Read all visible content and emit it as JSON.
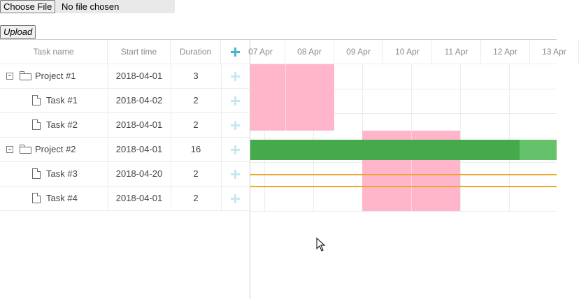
{
  "file_input": {
    "button_label": "Choose File",
    "status": "No file chosen"
  },
  "upload_button": {
    "label": "Upload"
  },
  "grid": {
    "columns": [
      "Task name",
      "Start time",
      "Duration"
    ],
    "rows": [
      {
        "name": "Project #1",
        "start": "2018-04-01",
        "duration": "3",
        "type": "project"
      },
      {
        "name": "Task #1",
        "start": "2018-04-02",
        "duration": "2",
        "type": "task"
      },
      {
        "name": "Task #2",
        "start": "2018-04-01",
        "duration": "2",
        "type": "task"
      },
      {
        "name": "Project #2",
        "start": "2018-04-01",
        "duration": "16",
        "type": "project"
      },
      {
        "name": "Task #3",
        "start": "2018-04-20",
        "duration": "2",
        "type": "task"
      },
      {
        "name": "Task #4",
        "start": "2018-04-01",
        "duration": "2",
        "type": "task"
      }
    ]
  },
  "timeline": {
    "scale": [
      "07 Apr",
      "08 Apr",
      "09 Apr",
      "10 Apr",
      "11 Apr",
      "12 Apr",
      "13 Apr"
    ],
    "colors": {
      "weekend_highlight": "#ffb6cb",
      "project_bar": "#66c26a",
      "project_progress": "#44aa4c",
      "link_line": "#efa52a"
    },
    "project2_progress": 0.88
  }
}
